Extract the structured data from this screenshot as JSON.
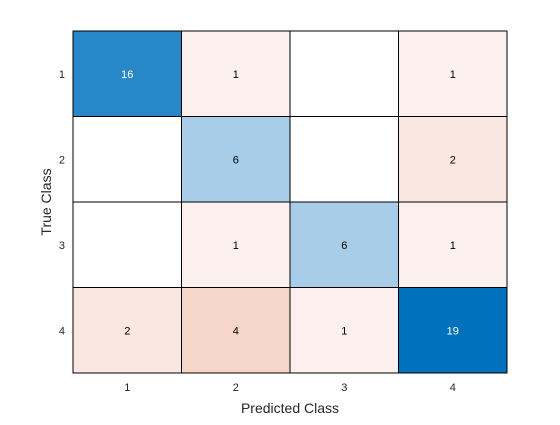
{
  "chart_data": {
    "type": "heatmap",
    "subtype": "confusion-matrix",
    "xlabel": "Predicted Class",
    "ylabel": "True Class",
    "x_categories": [
      "1",
      "2",
      "3",
      "4"
    ],
    "y_categories": [
      "1",
      "2",
      "3",
      "4"
    ],
    "matrix": [
      [
        16,
        1,
        null,
        1
      ],
      [
        null,
        6,
        null,
        2
      ],
      [
        null,
        1,
        6,
        1
      ],
      [
        2,
        4,
        1,
        19
      ]
    ],
    "grid": true
  }
}
